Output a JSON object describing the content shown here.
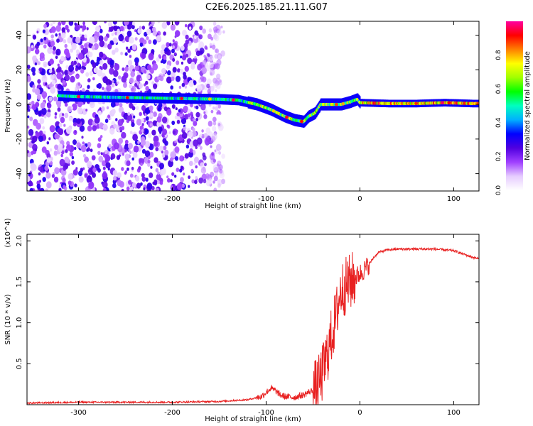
{
  "title": "C2E6.2025.185.21.11.G07",
  "chart_data": [
    {
      "type": "heatmap",
      "title": "C2E6.2025.185.21.11.G07",
      "xlabel": "Height of straight line (km)",
      "ylabel": "Frequency (Hz)",
      "xlim": [
        -355,
        127
      ],
      "ylim": [
        -50,
        48
      ],
      "xticks": [
        -300,
        -200,
        -100,
        0,
        100
      ],
      "yticks": [
        -40,
        -20,
        0,
        20,
        40
      ],
      "colorbar": {
        "label": "Normalized spectral amplitude",
        "range": [
          0,
          1
        ],
        "ticks": [
          0.0,
          0.2,
          0.4,
          0.6,
          0.8
        ],
        "colors": [
          "#ffffff",
          "#e6ccff",
          "#a040ff",
          "#5000e0",
          "#0000ff",
          "#00b0ff",
          "#00ffc0",
          "#00ff00",
          "#a0ff00",
          "#ffff00",
          "#ff8000",
          "#ff0000",
          "#ff00a0"
        ]
      },
      "ridge": {
        "x": [
          -322,
          -300,
          -250,
          -200,
          -150,
          -130,
          -110,
          -95,
          -80,
          -70,
          -60,
          -55,
          -48,
          -42,
          -35,
          -20,
          -10,
          -3,
          0,
          30,
          60,
          90,
          120
        ],
        "freq": [
          5,
          4.5,
          4,
          3.5,
          3,
          2.5,
          0,
          -3,
          -7,
          -9,
          -10,
          -7,
          -5,
          0,
          0,
          0,
          1.5,
          3,
          1,
          0.5,
          0.5,
          1,
          0.5
        ]
      },
      "noise_region": {
        "x_from": -355,
        "x_to": -145,
        "freq_from": -50,
        "freq_to": 48
      }
    },
    {
      "type": "line",
      "xlabel": "Height of straight line (km)",
      "ylabel": "SNR (10 * v/v)",
      "y_multiplier": "(x10^4)",
      "xlim": [
        -355,
        127
      ],
      "ylim": [
        0,
        2.08
      ],
      "xticks": [
        -300,
        -200,
        -100,
        0,
        100
      ],
      "yticks": [
        0.5,
        1.0,
        1.5,
        2.0
      ],
      "series": [
        {
          "color": "#e82020",
          "x": [
            -355,
            -300,
            -250,
            -200,
            -150,
            -120,
            -105,
            -100,
            -95,
            -90,
            -85,
            -80,
            -70,
            -60,
            -50,
            -45,
            -40,
            -35,
            -30,
            -25,
            -22,
            -20,
            -15,
            -10,
            -5,
            0,
            5,
            10,
            15,
            20,
            30,
            40,
            60,
            80,
            100,
            110,
            120,
            127
          ],
          "values": [
            0.02,
            0.03,
            0.03,
            0.03,
            0.04,
            0.06,
            0.1,
            0.15,
            0.2,
            0.17,
            0.12,
            0.1,
            0.09,
            0.12,
            0.18,
            0.22,
            0.38,
            0.6,
            0.85,
            1.1,
            1.3,
            1.4,
            1.45,
            1.5,
            1.55,
            1.6,
            1.65,
            1.72,
            1.8,
            1.86,
            1.89,
            1.9,
            1.9,
            1.9,
            1.88,
            1.84,
            1.8,
            1.78
          ]
        }
      ]
    }
  ]
}
